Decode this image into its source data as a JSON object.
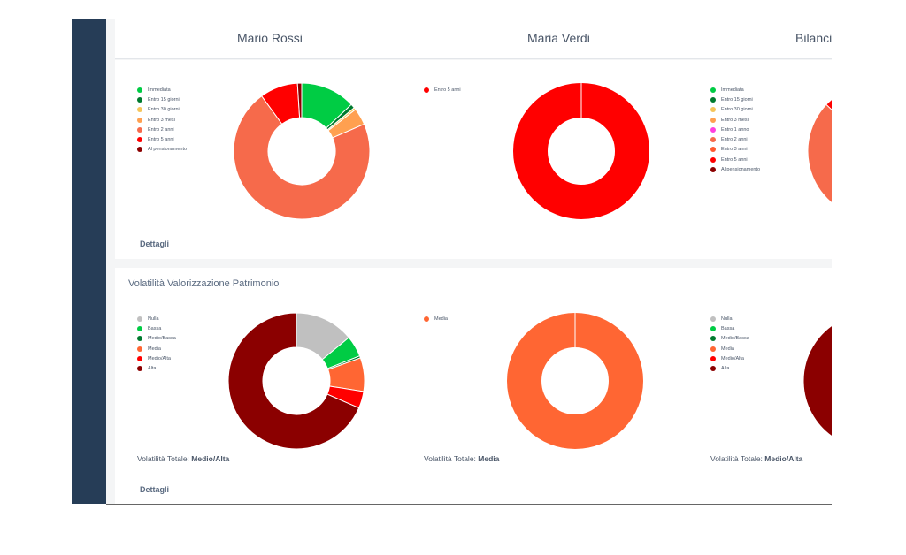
{
  "columns": [
    "Mario Rossi",
    "Maria Verdi",
    "Bilanci"
  ],
  "liquidity_section": {
    "details_label": "Dettagli",
    "charts": [
      {
        "slices": [
          {
            "label": "Immediata",
            "value": 13,
            "color": "#00cc44"
          },
          {
            "label": "Entro 15 giorni",
            "value": 1,
            "color": "#007a2e"
          },
          {
            "label": "Entro 30 giorni",
            "value": 0.5,
            "color": "#f5c55a"
          },
          {
            "label": "Entro 3 mesi",
            "value": 4,
            "color": "#ffa050"
          },
          {
            "label": "Entro 2 anni",
            "value": 71.5,
            "color": "#f66a4b"
          },
          {
            "label": "Entro 5 anni",
            "value": 9,
            "color": "#ff0000"
          },
          {
            "label": "Al pensionamento",
            "value": 1,
            "color": "#8b0000"
          }
        ]
      },
      {
        "slices": [
          {
            "label": "Entro 5 anni",
            "value": 100,
            "color": "#ff0000"
          }
        ]
      },
      {
        "slices": [
          {
            "label": "Immediata",
            "value": 12,
            "color": "#00cc44"
          },
          {
            "label": "Entro 15 giorni",
            "value": 4,
            "color": "#007a2e"
          },
          {
            "label": "Entro 30 giorni",
            "value": 3,
            "color": "#f5c55a"
          },
          {
            "label": "Entro 3 mesi",
            "value": 6,
            "color": "#ffa050"
          },
          {
            "label": "Entro 1 anno",
            "value": 2,
            "color": "#ff40e0"
          },
          {
            "label": "Entro 2 anni",
            "value": 60,
            "color": "#f66a4b"
          },
          {
            "label": "Entro 3 anni",
            "value": 0,
            "color": "#ff5a30"
          },
          {
            "label": "Entro 5 anni",
            "value": 13,
            "color": "#ff0000"
          },
          {
            "label": "Al pensionamento",
            "value": 0,
            "color": "#8b0000"
          }
        ]
      }
    ]
  },
  "volatility_section": {
    "title": "Volatilità Valorizzazione Patrimonio",
    "details_label": "Dettagli",
    "total_label": "Volatilità Totale:",
    "charts": [
      {
        "total": "Medio/Alta",
        "slices": [
          {
            "label": "Nulla",
            "value": 14,
            "color": "#c0c0c0"
          },
          {
            "label": "Bassa",
            "value": 5,
            "color": "#00cc44"
          },
          {
            "label": "Medio/Bassa",
            "value": 0.5,
            "color": "#007a2e"
          },
          {
            "label": "Media",
            "value": 8,
            "color": "#ff6633"
          },
          {
            "label": "Medio/Alta",
            "value": 4,
            "color": "#ff0000"
          },
          {
            "label": "Alta",
            "value": 68.5,
            "color": "#8b0000"
          }
        ]
      },
      {
        "total": "Media",
        "slices": [
          {
            "label": "Media",
            "value": 100,
            "color": "#ff6633"
          }
        ]
      },
      {
        "total": "Medio/Alta",
        "slices": [
          {
            "label": "Nulla",
            "value": 12,
            "color": "#c0c0c0"
          },
          {
            "label": "Bassa",
            "value": 5,
            "color": "#00cc44"
          },
          {
            "label": "Medio/Bassa",
            "value": 2,
            "color": "#007a2e"
          },
          {
            "label": "Media",
            "value": 10,
            "color": "#ff6633"
          },
          {
            "label": "Medio/Alta",
            "value": 5,
            "color": "#ff0000"
          },
          {
            "label": "Alta",
            "value": 66,
            "color": "#8b0000"
          }
        ]
      }
    ]
  }
}
